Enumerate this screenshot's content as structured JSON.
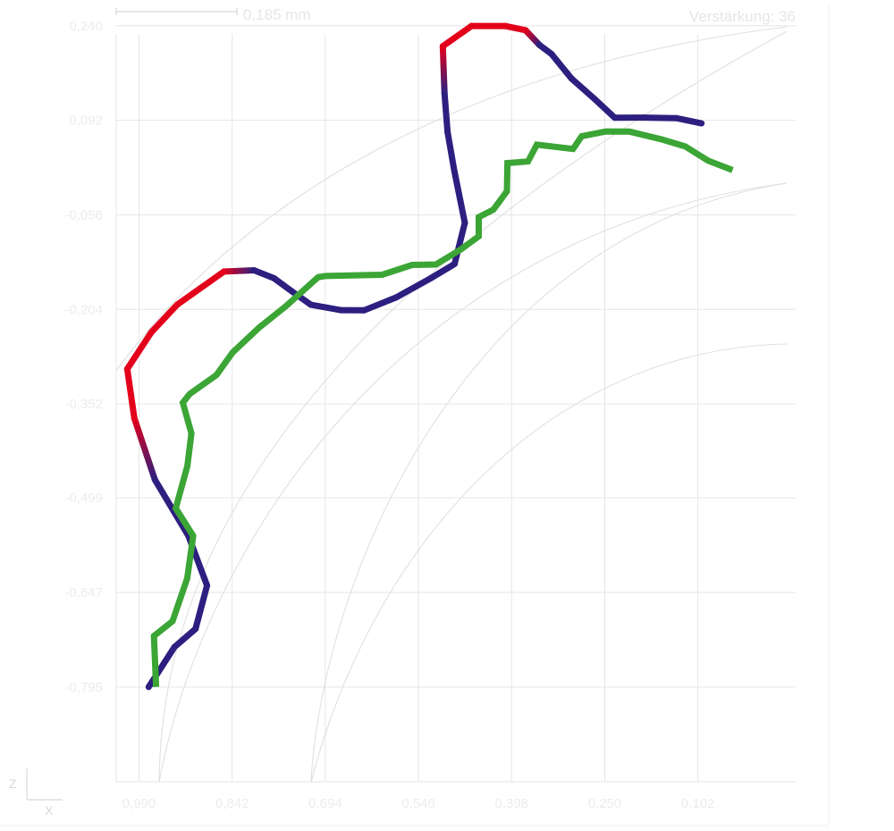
{
  "chart_data": {
    "type": "line",
    "scale_bar_label": "0,185 mm",
    "gain_label": "Verstärkung: 36",
    "x_axis_letter": "X",
    "z_axis_letter": "Z",
    "x_ticks": [
      "0,990",
      "0,842",
      "0,694",
      "0,546",
      "0,398",
      "0,250",
      "0,102"
    ],
    "y_ticks": [
      "0,240",
      "0,092",
      "-0,056",
      "-0,204",
      "-0,352",
      "-0,499",
      "-0,647",
      "-0,795"
    ],
    "x_range": [
      1.0262,
      -0.0533
    ],
    "y_range": [
      -0.9435,
      0.2593
    ],
    "grid": true,
    "colors": {
      "deviation_line": "#2c1f7f",
      "deviation_peak": "#e3001b",
      "reference_line": "#3ba535",
      "grid": "#e6e6e6",
      "contour": "#e0e0e0"
    },
    "series": [
      {
        "points": [
          [
            0.9746,
            -0.795
          ],
          [
            0.9337,
            -0.7325
          ],
          [
            0.9002,
            -0.7041
          ],
          [
            0.8819,
            -0.6362
          ],
          [
            0.9115,
            -0.5584
          ],
          [
            0.9647,
            -0.4707
          ],
          [
            0.9974,
            -0.3744
          ],
          [
            1.0087,
            -0.2972
          ],
          [
            0.9705,
            -0.2399
          ],
          [
            0.9294,
            -0.1966
          ],
          [
            0.8551,
            -0.1448
          ],
          [
            0.8072,
            -0.1428
          ],
          [
            0.7755,
            -0.1552
          ],
          [
            0.7466,
            -0.1761
          ],
          [
            0.717,
            -0.1967
          ],
          [
            0.6694,
            -0.2052
          ],
          [
            0.632,
            -0.2053
          ],
          [
            0.5819,
            -0.1855
          ],
          [
            0.5246,
            -0.1542
          ],
          [
            0.4886,
            -0.1329
          ],
          [
            0.4723,
            -0.0686
          ],
          [
            0.4893,
            0.0143
          ],
          [
            0.4998,
            0.0739
          ],
          [
            0.5046,
            0.1344
          ],
          [
            0.5073,
            0.208
          ],
          [
            0.4617,
            0.2395
          ],
          [
            0.4076,
            0.2395
          ],
          [
            0.3759,
            0.233
          ],
          [
            0.3538,
            0.2099
          ],
          [
            0.3346,
            0.1957
          ],
          [
            0.3029,
            0.1574
          ],
          [
            0.2672,
            0.1263
          ],
          [
            0.2343,
            0.0961
          ],
          [
            0.1879,
            0.0962
          ],
          [
            0.1358,
            0.0953
          ],
          [
            0.0963,
            0.0872
          ]
        ]
      },
      {
        "points": [
          [
            0.9629,
            -0.795
          ],
          [
            0.9663,
            -0.7151
          ],
          [
            0.9367,
            -0.692
          ],
          [
            0.9134,
            -0.6251
          ],
          [
            0.9039,
            -0.5585
          ],
          [
            0.9316,
            -0.5153
          ],
          [
            0.9131,
            -0.4489
          ],
          [
            0.9068,
            -0.398
          ],
          [
            0.9204,
            -0.3501
          ],
          [
            0.9094,
            -0.3363
          ],
          [
            0.867,
            -0.3067
          ],
          [
            0.8413,
            -0.2715
          ],
          [
            0.7997,
            -0.2328
          ],
          [
            0.7568,
            -0.199
          ],
          [
            0.7054,
            -0.1535
          ],
          [
            0.6934,
            -0.1518
          ],
          [
            0.6037,
            -0.1498
          ],
          [
            0.556,
            -0.1344
          ],
          [
            0.5183,
            -0.1337
          ],
          [
            0.4794,
            -0.1105
          ],
          [
            0.4503,
            -0.0896
          ],
          [
            0.4503,
            -0.0596
          ],
          [
            0.4269,
            -0.0478
          ],
          [
            0.4055,
            -0.0192
          ],
          [
            0.4047,
            0.025
          ],
          [
            0.372,
            0.0276
          ],
          [
            0.3579,
            0.0539
          ],
          [
            0.3004,
            0.0472
          ],
          [
            0.2866,
            0.0671
          ],
          [
            0.248,
            0.0745
          ],
          [
            0.2104,
            0.0742
          ],
          [
            0.1589,
            0.062
          ],
          [
            0.1222,
            0.0512
          ],
          [
            0.0861,
            0.029
          ],
          [
            0.047,
            0.014
          ]
        ]
      }
    ]
  }
}
